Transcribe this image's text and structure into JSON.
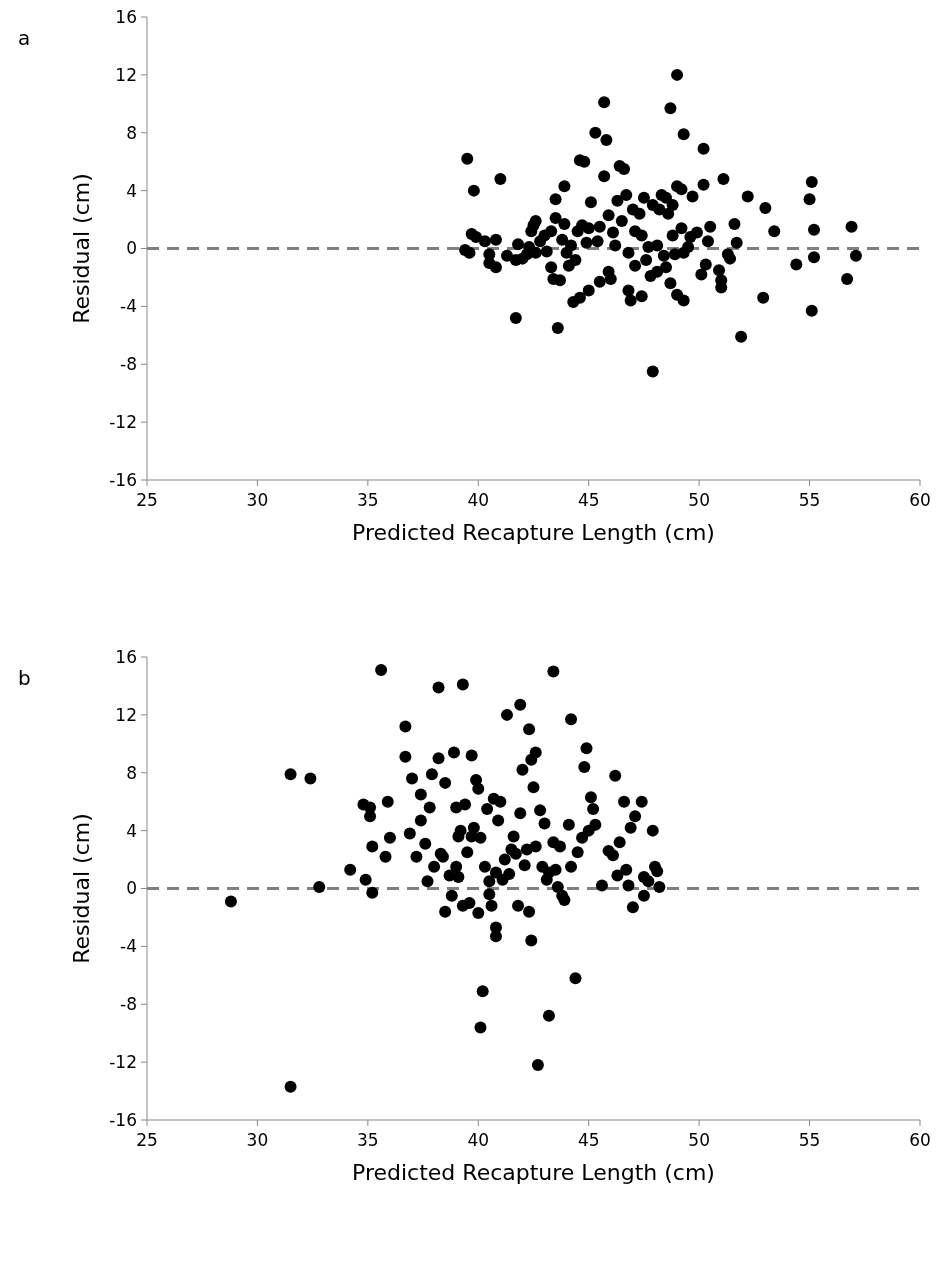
{
  "chart_data": [
    {
      "type": "scatter",
      "xlabel": "Predicted Recapture Length (cm)",
      "ylabel": "Residual (cm)",
      "annotations": [
        "a"
      ],
      "xlim": [
        25,
        60
      ],
      "xticks": [
        25,
        30,
        35,
        40,
        45,
        50,
        55,
        60
      ],
      "ylim": [
        -16,
        16
      ],
      "yticks": [
        -16,
        -12,
        -8,
        -4,
        0,
        4,
        8,
        12,
        16
      ],
      "marker": "circle",
      "color": "#000000",
      "ref_lines": [
        {
          "axis": "y",
          "value": 0,
          "color": "#808080",
          "line_style": "dashed"
        }
      ],
      "x": [
        39.5,
        39.8,
        39.4,
        39.7,
        39.9,
        39.6,
        40.3,
        40.5,
        40.5,
        40.8,
        40.8,
        41.0,
        41.3,
        41.7,
        41.7,
        41.8,
        42.0,
        42.2,
        42.3,
        42.4,
        42.5,
        42.6,
        42.6,
        42.8,
        43.0,
        43.1,
        43.3,
        43.3,
        43.4,
        43.5,
        43.5,
        43.6,
        43.7,
        43.8,
        43.9,
        43.9,
        44.0,
        44.1,
        44.2,
        44.3,
        44.4,
        44.5,
        44.6,
        44.6,
        44.8,
        44.7,
        44.9,
        45.0,
        45.0,
        45.1,
        45.3,
        45.4,
        45.5,
        45.5,
        45.7,
        45.7,
        45.8,
        45.9,
        45.9,
        46.0,
        46.1,
        46.2,
        46.3,
        46.4,
        46.5,
        46.6,
        46.7,
        46.8,
        46.8,
        46.9,
        47.0,
        47.1,
        47.1,
        47.3,
        47.4,
        47.4,
        47.5,
        47.6,
        47.7,
        47.8,
        47.9,
        47.9,
        48.1,
        48.1,
        48.2,
        48.3,
        48.4,
        48.5,
        48.5,
        48.6,
        48.7,
        48.7,
        48.8,
        48.8,
        48.9,
        49.0,
        49.0,
        49.0,
        49.2,
        49.2,
        49.3,
        49.3,
        49.3,
        49.5,
        49.6,
        49.7,
        49.9,
        50.1,
        50.2,
        50.2,
        50.3,
        50.4,
        50.5,
        50.9,
        51.0,
        51.0,
        51.1,
        51.3,
        51.4,
        51.6,
        51.7,
        51.9,
        52.2,
        52.9,
        53.0,
        53.4,
        54.4,
        55.0,
        55.1,
        55.1,
        55.2,
        55.2,
        56.7,
        56.9,
        57.1
      ],
      "values": [
        6.2,
        4.0,
        -0.1,
        1.0,
        0.8,
        -0.3,
        0.5,
        -0.4,
        -1.0,
        -1.3,
        0.6,
        4.8,
        -0.5,
        -0.8,
        -4.8,
        0.3,
        -0.7,
        -0.4,
        0.1,
        1.2,
        1.6,
        1.9,
        -0.3,
        0.5,
        0.9,
        -0.2,
        1.2,
        -1.3,
        -2.1,
        3.4,
        2.1,
        -5.5,
        -2.2,
        0.6,
        4.3,
        1.7,
        -0.3,
        -1.2,
        0.2,
        -3.7,
        -0.8,
        1.2,
        -3.4,
        6.1,
        6.0,
        1.6,
        0.4,
        -2.9,
        1.4,
        3.2,
        8.0,
        0.5,
        1.5,
        -2.3,
        10.1,
        5.0,
        7.5,
        2.3,
        -1.6,
        -2.1,
        1.1,
        0.2,
        3.3,
        5.7,
        1.9,
        5.5,
        3.7,
        -0.3,
        -2.9,
        -3.6,
        2.7,
        1.2,
        -1.2,
        2.4,
        -3.3,
        0.9,
        3.5,
        -0.8,
        0.1,
        -1.9,
        3.0,
        -8.5,
        0.2,
        -1.6,
        2.7,
        3.7,
        -0.5,
        3.5,
        -1.3,
        2.4,
        9.7,
        -2.4,
        3.0,
        0.9,
        -0.4,
        4.3,
        12.0,
        -3.2,
        4.1,
        1.4,
        7.9,
        -0.3,
        -3.6,
        0.1,
        0.8,
        3.6,
        1.1,
        -1.8,
        6.9,
        4.4,
        -1.1,
        0.5,
        1.5,
        -1.5,
        -2.2,
        -2.7,
        4.8,
        -0.4,
        -0.7,
        1.7,
        0.4,
        -6.1,
        3.6,
        -3.4,
        2.8,
        1.2,
        -1.1,
        3.4,
        4.6,
        -4.3,
        1.3,
        -0.6,
        -2.1,
        1.5,
        -0.5
      ]
    },
    {
      "type": "scatter",
      "xlabel": "Predicted Recapture Length (cm)",
      "ylabel": "Residual (cm)",
      "annotations": [
        "b"
      ],
      "xlim": [
        25,
        60
      ],
      "xticks": [
        25,
        30,
        35,
        40,
        45,
        50,
        55,
        60
      ],
      "ylim": [
        -16,
        16
      ],
      "yticks": [
        -16,
        -12,
        -8,
        -4,
        0,
        4,
        8,
        12,
        16
      ],
      "marker": "circle",
      "color": "#000000",
      "ref_lines": [
        {
          "axis": "y",
          "value": 0,
          "color": "#808080",
          "line_style": "dashed"
        }
      ],
      "x": [
        28.8,
        31.5,
        31.5,
        32.4,
        32.8,
        34.2,
        34.8,
        34.9,
        35.1,
        35.1,
        35.2,
        35.2,
        35.6,
        35.8,
        35.9,
        36.0,
        36.7,
        36.7,
        36.9,
        37.0,
        37.2,
        37.4,
        37.4,
        37.6,
        37.7,
        37.8,
        37.9,
        38.0,
        38.2,
        38.2,
        38.3,
        38.4,
        38.5,
        38.5,
        38.7,
        38.8,
        38.9,
        39.0,
        39.0,
        39.1,
        39.1,
        39.2,
        39.3,
        39.3,
        39.4,
        39.5,
        39.6,
        39.7,
        39.7,
        39.8,
        39.9,
        40.0,
        40.0,
        40.1,
        40.1,
        40.2,
        40.3,
        40.4,
        40.5,
        40.5,
        40.6,
        40.7,
        40.8,
        40.8,
        40.8,
        40.9,
        41.0,
        41.1,
        41.2,
        41.3,
        41.4,
        41.5,
        41.6,
        41.7,
        41.8,
        41.9,
        41.9,
        42.0,
        42.1,
        42.2,
        42.3,
        42.3,
        42.4,
        42.4,
        42.5,
        42.6,
        42.6,
        42.7,
        42.8,
        42.9,
        43.0,
        43.1,
        43.2,
        43.2,
        43.4,
        43.4,
        43.5,
        43.6,
        43.7,
        43.8,
        43.9,
        44.1,
        44.2,
        44.2,
        44.4,
        44.5,
        44.7,
        44.8,
        44.9,
        45.0,
        45.1,
        45.2,
        45.3,
        45.6,
        45.9,
        46.1,
        46.2,
        46.3,
        46.4,
        46.6,
        46.7,
        46.8,
        46.9,
        47.0,
        47.1,
        47.4,
        47.5,
        47.5,
        47.7,
        47.9,
        48.0,
        48.1,
        48.2
      ],
      "values": [
        -0.9,
        7.9,
        -13.7,
        7.6,
        0.1,
        1.3,
        5.8,
        0.6,
        5.0,
        5.6,
        2.9,
        -0.3,
        15.1,
        2.2,
        6.0,
        3.5,
        9.1,
        11.2,
        3.8,
        7.6,
        2.2,
        6.5,
        4.7,
        3.1,
        0.5,
        5.6,
        7.9,
        1.5,
        9.0,
        13.9,
        2.4,
        2.2,
        -1.6,
        7.3,
        0.9,
        -0.5,
        9.4,
        5.6,
        1.5,
        0.8,
        3.6,
        4.0,
        14.1,
        -1.2,
        5.8,
        2.5,
        -1.0,
        9.2,
        3.6,
        4.2,
        7.5,
        -1.7,
        6.9,
        3.5,
        -9.6,
        -7.1,
        1.5,
        5.5,
        -0.4,
        0.5,
        -1.2,
        6.2,
        1.1,
        -2.7,
        -3.3,
        4.7,
        6.0,
        0.6,
        2.0,
        12.0,
        1.0,
        2.7,
        3.6,
        2.4,
        -1.2,
        12.7,
        5.2,
        8.2,
        1.6,
        2.7,
        -1.6,
        11.0,
        -3.6,
        8.9,
        7.0,
        9.4,
        2.9,
        -12.2,
        5.4,
        1.5,
        4.5,
        0.6,
        -8.8,
        1.1,
        15.0,
        3.2,
        1.3,
        0.1,
        2.9,
        -0.5,
        -0.8,
        4.4,
        11.7,
        1.5,
        -6.2,
        2.5,
        3.5,
        8.4,
        9.7,
        4.0,
        6.3,
        5.5,
        4.4,
        0.2,
        2.6,
        2.3,
        7.8,
        0.9,
        3.2,
        6.0,
        1.3,
        0.2,
        4.2,
        -1.3,
        5.0,
        6.0,
        0.8,
        -0.5,
        0.5,
        4.0,
        1.5,
        1.2,
        0.1
      ]
    }
  ]
}
